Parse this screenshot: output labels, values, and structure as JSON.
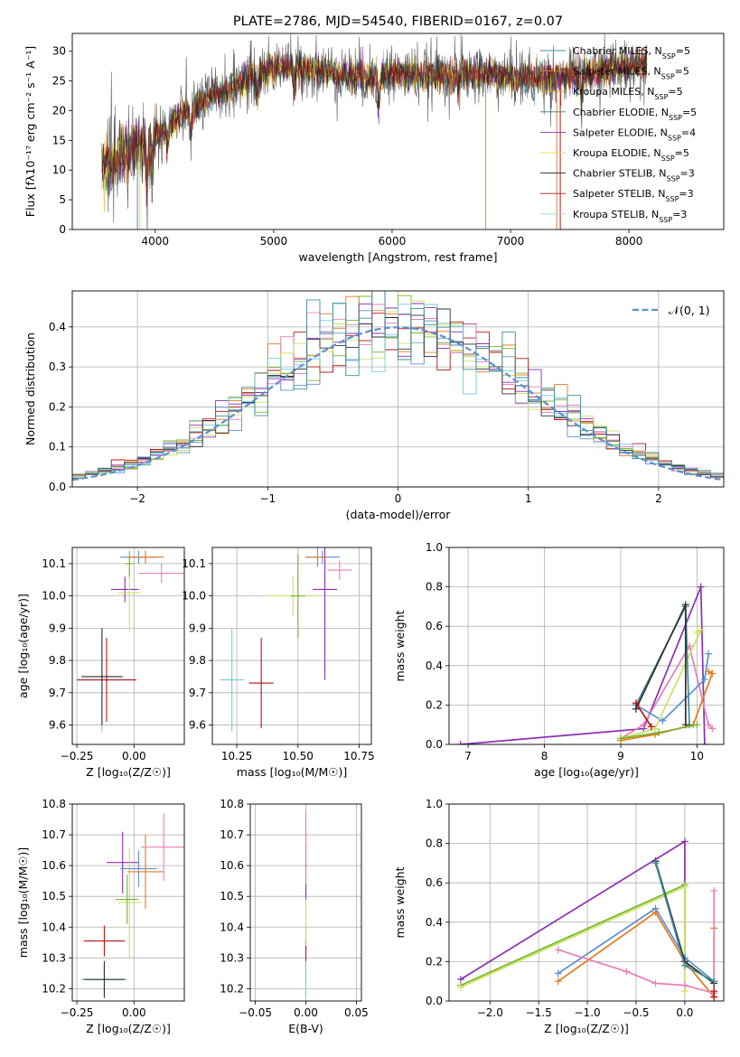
{
  "colors": {
    "cm": "#4a8ea3",
    "sm": "#e67d2a",
    "km": "#d6a012",
    "ce": "#3c7f68",
    "se": "#8f35b8",
    "ke": "#e4e24f",
    "cs": "#222222",
    "ss": "#b01c1c",
    "ks": "#8cd8ec",
    "blue": "#5b8fd6",
    "orange": "#e8791e",
    "pink": "#e87fb7",
    "purple": "#8b2fb8",
    "green": "#75b52a",
    "lime": "#c9e25f",
    "red": "#b51414",
    "dark": "#2f2f2f",
    "cyan": "#74cbd8",
    "teal": "#3f8e96"
  },
  "chart_data": [
    {
      "id": "spectrum",
      "type": "line",
      "title": "PLATE=2786, MJD=54540, FIBERID=0167, z=0.07",
      "xlabel": "wavelength [Angstrom, rest frame]",
      "ylabel": "Flux [fλ10⁻¹⁷ erg cm⁻² s⁻¹ A⁻¹]",
      "xlim": [
        3300,
        8800
      ],
      "ylim": [
        0,
        33
      ],
      "xticks": [
        4000,
        5000,
        6000,
        7000,
        8000
      ],
      "yticks": [
        0,
        5,
        10,
        15,
        20,
        25,
        30
      ],
      "continuum": {
        "x": [
          3550,
          3700,
          3850,
          4000,
          4200,
          4400,
          4600,
          4800,
          5000,
          5200,
          5400,
          5600,
          5800,
          6000,
          6300,
          6600,
          6900,
          7200,
          7500,
          7800,
          8000,
          8150
        ],
        "y": [
          10,
          12,
          14,
          15.5,
          19,
          21.5,
          23.5,
          25.5,
          27.3,
          27.5,
          26.7,
          26,
          25.6,
          26.2,
          26,
          26.2,
          26,
          25.3,
          25.7,
          26.8,
          27.5,
          28
        ]
      },
      "legend_position": "upper right",
      "legend": [
        {
          "label": "Chabrier MILES, N",
          "sub": "SSP",
          "value": "=5",
          "color_key": "cm"
        },
        {
          "label": "Salpeter MILES, N",
          "sub": "SSP",
          "value": "=5",
          "color_key": "sm"
        },
        {
          "label": "Kroupa MILES, N",
          "sub": "SSP",
          "value": "=5",
          "color_key": "km"
        },
        {
          "label": "Chabrier ELODIE, N",
          "sub": "SSP",
          "value": "=5",
          "color_key": "ce"
        },
        {
          "label": "Salpeter ELODIE, N",
          "sub": "SSP",
          "value": "=4",
          "color_key": "se"
        },
        {
          "label": "Kroupa ELODIE, N",
          "sub": "SSP",
          "value": "=5",
          "color_key": "ke"
        },
        {
          "label": "Chabrier STELIB, N",
          "sub": "SSP",
          "value": "=3",
          "color_key": "cs"
        },
        {
          "label": "Salpeter STELIB, N",
          "sub": "SSP",
          "value": "=3",
          "color_key": "ss"
        },
        {
          "label": "Kroupa STELIB, N",
          "sub": "SSP",
          "value": "=3",
          "color_key": "ks"
        }
      ]
    },
    {
      "id": "residuals",
      "type": "line",
      "xlabel": "(data-model)/error",
      "ylabel": "Normed distribution",
      "xlim": [
        -2.5,
        2.5
      ],
      "ylim": [
        0,
        0.49
      ],
      "xticks": [
        -2,
        -1,
        0,
        1,
        2
      ],
      "yticks": [
        0.0,
        0.1,
        0.2,
        0.3,
        0.4
      ],
      "legend": [
        {
          "label": "𝒩(0, 1)",
          "color_key": "blue"
        }
      ],
      "legend_position": "upper right",
      "bin_width": 0.1,
      "series_color_keys": [
        "blue",
        "orange",
        "green",
        "red",
        "purple",
        "pink",
        "lime",
        "cyan",
        "dark",
        "teal"
      ]
    },
    {
      "id": "age_vs_Z",
      "type": "scatter",
      "xlabel": "Z [log₁₀(Z/Z☉)]",
      "ylabel": "age  [log₁₀(age/yr)]",
      "xlim": [
        -0.27,
        0.22
      ],
      "ylim": [
        9.54,
        10.15
      ],
      "xticks": [
        -0.25,
        0.0
      ],
      "xtick_labels": [
        "−0.25",
        "0.00"
      ],
      "yticks": [
        9.6,
        9.7,
        9.8,
        9.9,
        10.0,
        10.1
      ],
      "points": [
        {
          "x": -0.14,
          "y": 9.74,
          "xe": 0.1,
          "ye": 0.16,
          "c": "cyan"
        },
        {
          "x": -0.12,
          "y": 9.74,
          "xe": 0.13,
          "ye": 0.13,
          "c": "red"
        },
        {
          "x": -0.14,
          "y": 9.75,
          "xe": 0.09,
          "ye": 0.15,
          "c": "dark"
        },
        {
          "x": -0.04,
          "y": 10.02,
          "xe": 0.06,
          "ye": 0.04,
          "c": "purple"
        },
        {
          "x": -0.02,
          "y": 10.01,
          "xe": 0.05,
          "ye": 0.12,
          "c": "lime"
        },
        {
          "x": 0.02,
          "y": 10.12,
          "xe": 0.08,
          "ye": 0.02,
          "c": "blue"
        },
        {
          "x": 0.05,
          "y": 10.12,
          "xe": 0.08,
          "ye": 0.02,
          "c": "orange"
        },
        {
          "x": 0.12,
          "y": 10.07,
          "xe": 0.1,
          "ye": 0.03,
          "c": "pink"
        },
        {
          "x": -0.02,
          "y": 10.1,
          "xe": 0.02,
          "ye": 0.04,
          "c": "green"
        }
      ]
    },
    {
      "id": "age_vs_mass",
      "type": "scatter",
      "xlabel": "mass [log₁₀(M/M☉)]",
      "ylabel": "",
      "xlim": [
        10.15,
        10.8
      ],
      "ylim": [
        9.54,
        10.15
      ],
      "xticks": [
        10.25,
        10.5,
        10.75
      ],
      "xtick_labels": [
        "10.25",
        "10.50",
        "10.75"
      ],
      "yticks": [
        9.6,
        9.7,
        9.8,
        9.9,
        10.0,
        10.1
      ],
      "points": [
        {
          "x": 10.23,
          "y": 9.74,
          "xe": 0.05,
          "ye": 0.16,
          "c": "cyan"
        },
        {
          "x": 10.35,
          "y": 9.73,
          "xe": 0.05,
          "ye": 0.14,
          "c": "red"
        },
        {
          "x": 10.48,
          "y": 10.0,
          "xe": 0.1,
          "ye": 0.06,
          "c": "lime"
        },
        {
          "x": 10.5,
          "y": 10.0,
          "xe": 0.03,
          "ye": 0.13,
          "c": "green"
        },
        {
          "x": 10.61,
          "y": 10.02,
          "xe": 0.05,
          "ye": 0.28,
          "c": "purple"
        },
        {
          "x": 10.6,
          "y": 10.12,
          "xe": 0.07,
          "ye": 0.02,
          "c": "blue"
        },
        {
          "x": 10.58,
          "y": 10.12,
          "xe": 0.04,
          "ye": 0.03,
          "c": "orange"
        },
        {
          "x": 10.67,
          "y": 10.08,
          "xe": 0.05,
          "ye": 0.03,
          "c": "pink"
        }
      ]
    },
    {
      "id": "weight_vs_age",
      "type": "line",
      "xlabel": "age  [log₁₀(age/yr)]",
      "ylabel": "mass weight",
      "xlim": [
        6.75,
        10.35
      ],
      "ylim": [
        0,
        1.0
      ],
      "xticks": [
        7,
        8,
        9,
        10
      ],
      "yticks": [
        0.0,
        0.2,
        0.4,
        0.6,
        0.8,
        1.0
      ],
      "series": [
        {
          "c": "purple",
          "x": [
            6.9,
            9.3,
            10.05,
            10.1
          ],
          "y": [
            0.0,
            0.08,
            0.8,
            0.0
          ]
        },
        {
          "c": "pink",
          "x": [
            9.0,
            9.3,
            9.9,
            10.15,
            10.2
          ],
          "y": [
            0.03,
            0.1,
            0.5,
            0.1,
            0.08
          ]
        },
        {
          "c": "blue",
          "x": [
            9.2,
            9.55,
            10.1,
            10.15
          ],
          "y": [
            0.2,
            0.12,
            0.33,
            0.46
          ]
        },
        {
          "c": "orange",
          "x": [
            9.0,
            9.45,
            9.95,
            10.2,
            10.15
          ],
          "y": [
            0.02,
            0.05,
            0.1,
            0.36,
            0.37
          ]
        },
        {
          "c": "lime",
          "x": [
            9.0,
            9.45,
            10.05,
            10.0
          ],
          "y": [
            0.03,
            0.08,
            0.58,
            0.57
          ]
        },
        {
          "c": "teal",
          "x": [
            9.2,
            9.85,
            9.9
          ],
          "y": [
            0.2,
            0.7,
            0.1
          ]
        },
        {
          "c": "dark",
          "x": [
            9.2,
            9.85,
            9.85
          ],
          "y": [
            0.18,
            0.71,
            0.1
          ]
        },
        {
          "c": "green",
          "x": [
            9.0,
            9.5,
            10.0
          ],
          "y": [
            0.03,
            0.06,
            0.1
          ]
        },
        {
          "c": "red",
          "x": [
            9.2,
            9.4
          ],
          "y": [
            0.21,
            0.09
          ]
        }
      ]
    },
    {
      "id": "mass_vs_Z",
      "type": "scatter",
      "xlabel": "Z [log₁₀(Z/Z☉)]",
      "ylabel": "mass [log₁₀(M/M☉)]",
      "xlim": [
        -0.27,
        0.22
      ],
      "ylim": [
        10.16,
        10.8
      ],
      "xticks": [
        -0.25,
        0.0
      ],
      "xtick_labels": [
        "−0.25",
        "0.00"
      ],
      "yticks": [
        10.2,
        10.3,
        10.4,
        10.5,
        10.6,
        10.7,
        10.8
      ],
      "points": [
        {
          "x": -0.13,
          "y": 10.23,
          "xe": 0.1,
          "ye": 0.04,
          "c": "cyan"
        },
        {
          "x": -0.13,
          "y": 10.23,
          "xe": 0.09,
          "ye": 0.06,
          "c": "dark"
        },
        {
          "x": -0.13,
          "y": 10.355,
          "xe": 0.09,
          "ye": 0.05,
          "c": "red"
        },
        {
          "x": -0.05,
          "y": 10.61,
          "xe": 0.07,
          "ye": 0.1,
          "c": "purple"
        },
        {
          "x": -0.02,
          "y": 10.48,
          "xe": 0.05,
          "ye": 0.18,
          "c": "lime"
        },
        {
          "x": -0.03,
          "y": 10.49,
          "xe": 0.05,
          "ye": 0.08,
          "c": "green"
        },
        {
          "x": 0.02,
          "y": 10.59,
          "xe": 0.08,
          "ye": 0.06,
          "c": "blue"
        },
        {
          "x": 0.05,
          "y": 10.58,
          "xe": 0.08,
          "ye": 0.12,
          "c": "orange"
        },
        {
          "x": 0.13,
          "y": 10.66,
          "xe": 0.1,
          "ye": 0.11,
          "c": "pink"
        }
      ]
    },
    {
      "id": "mass_vs_EBV",
      "type": "scatter",
      "xlabel": "E(B-V)",
      "ylabel": "",
      "xlim": [
        -0.055,
        0.055
      ],
      "ylim": [
        10.16,
        10.8
      ],
      "xticks": [
        -0.05,
        0.0,
        0.05
      ],
      "xtick_labels": [
        "−0.05",
        "0.00",
        "0.05"
      ],
      "yticks": [
        10.2,
        10.3,
        10.4,
        10.5,
        10.6,
        10.7,
        10.8
      ],
      "points": [
        {
          "x": 0.0,
          "y": 10.23,
          "xe": 0,
          "ye": 0.06,
          "c": "cyan"
        },
        {
          "x": 0.0,
          "y": 10.35,
          "xe": 0,
          "ye": 0.06,
          "c": "red"
        },
        {
          "x": 0.0,
          "y": 10.49,
          "xe": 0,
          "ye": 0.15,
          "c": "lime"
        },
        {
          "x": 0.0,
          "y": 10.6,
          "xe": 0,
          "ye": 0.11,
          "c": "purple"
        },
        {
          "x": 0.0,
          "y": 10.66,
          "xe": 0,
          "ye": 0.12,
          "c": "pink"
        }
      ]
    },
    {
      "id": "weight_vs_Z",
      "type": "line",
      "xlabel": "Z [log₁₀(Z/Z☉)]",
      "ylabel": "mass weight",
      "xlim": [
        -2.42,
        0.4
      ],
      "ylim": [
        0,
        1.0
      ],
      "xticks": [
        -2.0,
        -1.5,
        -1.0,
        -0.5,
        0.0
      ],
      "xtick_labels": [
        "−2.0",
        "−1.5",
        "−1.0",
        "−0.5",
        "0.0"
      ],
      "yticks": [
        0.0,
        0.2,
        0.4,
        0.6,
        0.8,
        1.0
      ],
      "series": [
        {
          "c": "purple",
          "x": [
            -2.3,
            0.0,
            0.0
          ],
          "y": [
            0.11,
            0.81,
            0.2
          ]
        },
        {
          "c": "green",
          "x": [
            -2.3,
            0.0,
            0.0
          ],
          "y": [
            0.08,
            0.59,
            0.2
          ]
        },
        {
          "c": "lime",
          "x": [
            -2.3,
            0.0,
            0.0
          ],
          "y": [
            0.07,
            0.58,
            0.05
          ]
        },
        {
          "c": "blue",
          "x": [
            -1.3,
            -0.3,
            0.0,
            0.3
          ],
          "y": [
            0.14,
            0.47,
            0.22,
            0.1
          ]
        },
        {
          "c": "orange",
          "x": [
            -1.3,
            -0.3,
            0.0,
            0.3,
            0.3
          ],
          "y": [
            0.1,
            0.45,
            0.2,
            0.02,
            0.37
          ]
        },
        {
          "c": "pink",
          "x": [
            -1.3,
            -0.6,
            -0.3,
            0.0,
            0.3,
            0.3
          ],
          "y": [
            0.26,
            0.15,
            0.09,
            0.08,
            0.04,
            0.56
          ]
        },
        {
          "c": "dark",
          "x": [
            -0.3,
            0.0,
            0.3
          ],
          "y": [
            0.71,
            0.2,
            0.09
          ]
        },
        {
          "c": "teal",
          "x": [
            -0.3,
            0.0,
            0.3
          ],
          "y": [
            0.7,
            0.18,
            0.1
          ]
        },
        {
          "c": "red",
          "x": [
            0.3,
            0.3
          ],
          "y": [
            0.02,
            0.05
          ]
        }
      ]
    }
  ]
}
